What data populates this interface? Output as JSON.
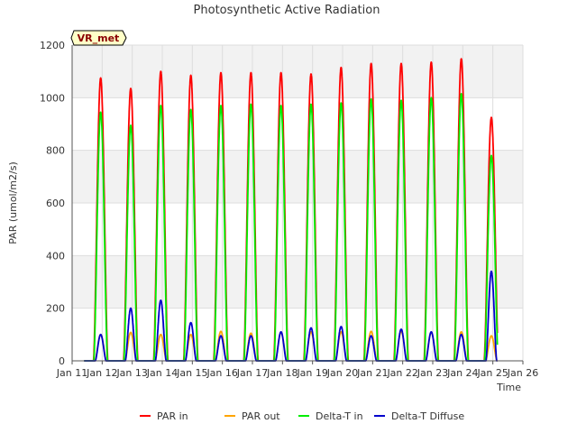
{
  "chart_data": {
    "type": "line",
    "title": "Photosynthetic Active Radiation",
    "xlabel": "Time",
    "ylabel": "PAR (umol/m2/s)",
    "ylim": [
      0,
      1200
    ],
    "xlim": [
      11,
      26
    ],
    "yticks": [
      0,
      200,
      400,
      600,
      800,
      1000,
      1200
    ],
    "x_ticks": [
      11,
      12,
      13,
      14,
      15,
      16,
      17,
      18,
      19,
      20,
      21,
      22,
      23,
      24,
      25,
      26
    ],
    "x_tick_labels": [
      "Jan 11",
      "Jan 12",
      "Jan 13",
      "Jan 14",
      "Jan 15",
      "Jan 16",
      "Jan 17",
      "Jan 18",
      "Jan 19",
      "Jan 20",
      "Jan 21",
      "Jan 22",
      "Jan 23",
      "Jan 24",
      "Jan 25",
      "Jan 26"
    ],
    "annotation": "VR_met",
    "series_start_day": 11.4,
    "series_end_day": 25.15,
    "daily_peak_days": [
      11.95,
      12.95,
      13.95,
      14.95,
      15.95,
      16.95,
      17.95,
      18.95,
      19.95,
      20.95,
      21.95,
      22.95,
      23.95,
      24.95
    ],
    "series": [
      {
        "name": "PAR in",
        "color": "#ff0000",
        "daily_peaks": [
          1075,
          1035,
          1100,
          1085,
          1095,
          1095,
          1095,
          1090,
          1115,
          1130,
          1130,
          1135,
          1148,
          925
        ]
      },
      {
        "name": "PAR out",
        "color": "#ffa500",
        "daily_peaks": [
          100,
          108,
          100,
          100,
          112,
          105,
          108,
          110,
          110,
          112,
          112,
          108,
          110,
          95
        ]
      },
      {
        "name": "Delta-T in",
        "color": "#00ee00",
        "daily_peaks": [
          945,
          895,
          970,
          955,
          970,
          975,
          970,
          975,
          980,
          995,
          990,
          1000,
          1015,
          780
        ]
      },
      {
        "name": "Delta-T Diffuse",
        "color": "#0000cc",
        "daily_peaks": [
          100,
          200,
          230,
          145,
          95,
          95,
          110,
          125,
          130,
          95,
          120,
          110,
          100,
          340
        ]
      }
    ]
  }
}
